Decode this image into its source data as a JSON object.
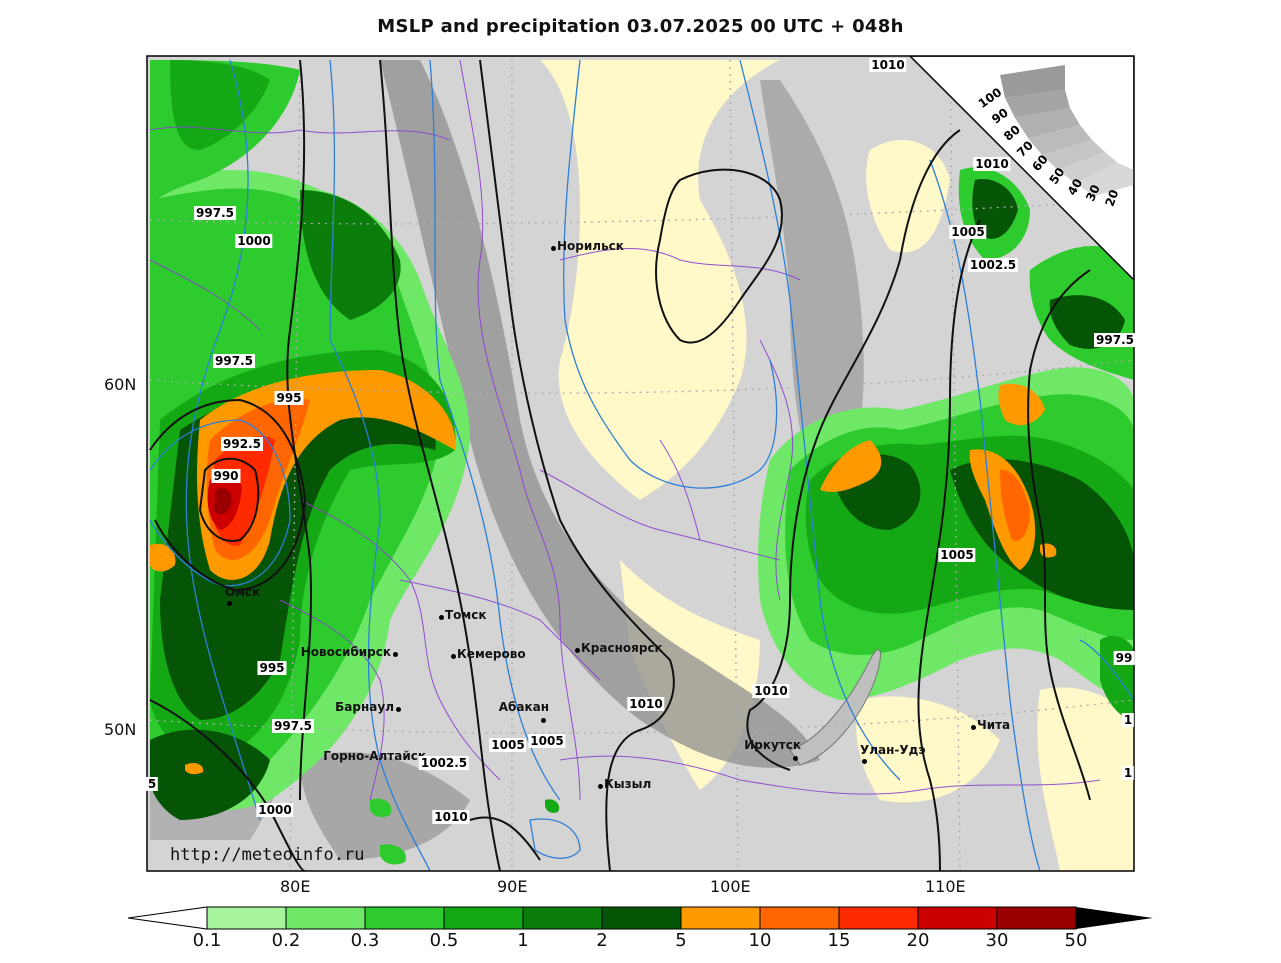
{
  "title": "MSLP and precipitation 03.07.2025 00 UTC + 048h",
  "credit": "http://meteoinfo.ru",
  "lat_labels": [
    "60N",
    "50N"
  ],
  "lon_labels": [
    "80E",
    "90E",
    "100E",
    "110E"
  ],
  "colorbar": {
    "ticks": [
      "0.1",
      "0.2",
      "0.3",
      "0.5",
      "1",
      "2",
      "5",
      "10",
      "15",
      "20",
      "30",
      "50"
    ],
    "colors": [
      "#a6f59c",
      "#6ee866",
      "#2ecb2e",
      "#15a815",
      "#0b7d0b",
      "#065406",
      "#ff9900",
      "#ff6600",
      "#ff2a00",
      "#cc0000",
      "#990000",
      "#000000"
    ]
  },
  "cloud_scale": [
    "100",
    "90",
    "80",
    "70",
    "60",
    "50",
    "40",
    "30",
    "20"
  ],
  "cities": [
    {
      "name": "Норильск"
    },
    {
      "name": "Томск"
    },
    {
      "name": "Омск"
    },
    {
      "name": "Новосибирск"
    },
    {
      "name": "Кемерово"
    },
    {
      "name": "Красноярск"
    },
    {
      "name": "Барнаул"
    },
    {
      "name": "Абакан"
    },
    {
      "name": "Горно-Алтайск"
    },
    {
      "name": "Кызыл"
    },
    {
      "name": "Иркутск"
    },
    {
      "name": "Улан-Удэ"
    },
    {
      "name": "Чита"
    }
  ],
  "isobar_labels": [
    "1010",
    "997.5",
    "1000",
    "997.5",
    "995",
    "992.5",
    "990",
    "995",
    "997.5",
    "1000",
    "1002.5",
    "1005",
    "1005",
    "1010",
    "1010",
    "1010",
    "1005",
    "1002.5",
    "1010",
    "1005",
    "997.5",
    "99",
    "1",
    "1",
    "5"
  ]
}
